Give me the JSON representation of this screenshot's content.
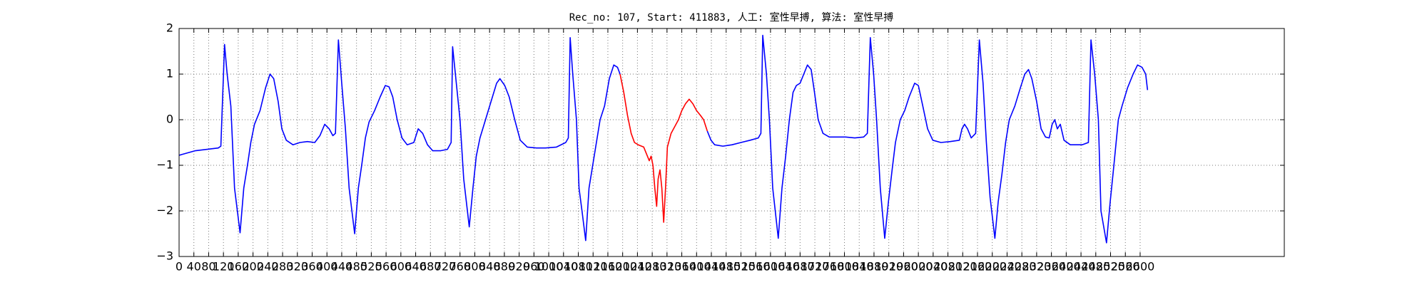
{
  "chart_data": {
    "type": "line",
    "title": "Rec_no: 107, Start: 411883, 人工: 室性早搏, 算法: 室性早搏",
    "xlim": [
      0,
      2990
    ],
    "xticks": [
      0,
      40,
      80,
      120,
      160,
      200,
      240,
      280,
      320,
      360,
      400,
      440,
      480,
      520,
      560,
      600,
      640,
      680,
      720,
      760,
      800,
      840,
      880,
      920,
      960,
      1000,
      1040,
      1080,
      1120,
      1160,
      1200,
      1240,
      1280,
      1320,
      1360,
      1400,
      1440,
      1480,
      1520,
      1560,
      1600,
      1640,
      1680,
      1720,
      1760,
      1800,
      1840,
      1880,
      1920,
      1960,
      2000,
      2040,
      2080,
      2120,
      2160,
      2200,
      2240,
      2280,
      2320,
      2360,
      2400,
      2440,
      2480,
      2520,
      2560,
      2600
    ],
    "ylim": [
      -3,
      2
    ],
    "yticks": [
      {
        "value": -3,
        "label": "−3"
      },
      {
        "value": -2,
        "label": "−2"
      },
      {
        "value": -1,
        "label": "−1"
      },
      0,
      1,
      2
    ],
    "grid": true,
    "series": [
      {
        "color": "#0000ff",
        "x": [
          0,
          44,
          106,
          113,
          123,
          130,
          140,
          150,
          165,
          175,
          185,
          194,
          204,
          219,
          234,
          246,
          256,
          268,
          278,
          290,
          308,
          327,
          347,
          367,
          381,
          394,
          406,
          416,
          423,
          431,
          440,
          450,
          460,
          475,
          485,
          494,
          504,
          514,
          529,
          544,
          558,
          568,
          578,
          590,
          603,
          617,
          635,
          647,
          659,
          672,
          686,
          708,
          726,
          736,
          740,
          750,
          760,
          770,
          785,
          795,
          804,
          814,
          829,
          844,
          859,
          868,
          881,
          893,
          908,
          923,
          942,
          967,
          991,
          1021,
          1046,
          1053,
          1058,
          1065,
          1075,
          1082,
          1090,
          1100,
          1109,
          1119,
          1129,
          1139,
          1151,
          1164,
          1176,
          1186,
          1193
        ],
        "values": [
          -0.78,
          -0.68,
          -0.62,
          -0.58,
          1.65,
          1.0,
          0.3,
          -1.5,
          -2.48,
          -1.5,
          -1.0,
          -0.5,
          -0.1,
          0.2,
          0.7,
          1.0,
          0.9,
          0.4,
          -0.2,
          -0.45,
          -0.55,
          -0.5,
          -0.48,
          -0.5,
          -0.35,
          -0.1,
          -0.2,
          -0.35,
          -0.3,
          1.75,
          0.8,
          -0.2,
          -1.5,
          -2.5,
          -1.5,
          -1.0,
          -0.4,
          -0.05,
          0.2,
          0.5,
          0.75,
          0.72,
          0.5,
          0.0,
          -0.4,
          -0.55,
          -0.5,
          -0.2,
          -0.3,
          -0.55,
          -0.68,
          -0.68,
          -0.65,
          -0.5,
          1.6,
          0.8,
          0.0,
          -1.3,
          -2.35,
          -1.5,
          -0.8,
          -0.4,
          0.0,
          0.4,
          0.8,
          0.9,
          0.75,
          0.5,
          0.0,
          -0.45,
          -0.6,
          -0.62,
          -0.62,
          -0.6,
          -0.5,
          -0.4,
          1.8,
          1.0,
          0.0,
          -1.5,
          -2.0,
          -2.65,
          -1.5,
          -1.0,
          -0.5,
          0.0,
          0.3,
          0.9,
          1.2,
          1.15,
          1.0
        ]
      },
      {
        "color": "#ff0000",
        "x": [
          1193,
          1203,
          1213,
          1223,
          1232,
          1242,
          1257,
          1267,
          1272,
          1277,
          1282,
          1287,
          1292,
          1296,
          1301,
          1306,
          1311,
          1316,
          1321,
          1331,
          1341,
          1351,
          1360,
          1370,
          1380,
          1390,
          1400,
          1410,
          1419,
          1429
        ],
        "values": [
          1.0,
          0.6,
          0.1,
          -0.3,
          -0.5,
          -0.55,
          -0.6,
          -0.8,
          -0.9,
          -0.8,
          -1.0,
          -1.5,
          -1.9,
          -1.3,
          -1.1,
          -1.5,
          -2.25,
          -1.5,
          -0.6,
          -0.3,
          -0.15,
          0.0,
          0.2,
          0.35,
          0.45,
          0.35,
          0.2,
          0.1,
          0.0,
          -0.25
        ]
      },
      {
        "color": "#0000ff",
        "x": [
          1429,
          1439,
          1449,
          1471,
          1496,
          1520,
          1545,
          1567,
          1574,
          1579,
          1589,
          1597,
          1606,
          1621,
          1631,
          1641,
          1651,
          1661,
          1670,
          1680,
          1690,
          1700,
          1710,
          1719,
          1729,
          1742,
          1759,
          1779,
          1803,
          1828,
          1852,
          1862,
          1870,
          1879,
          1887,
          1897,
          1909,
          1919,
          1929,
          1938,
          1951,
          1963,
          1975,
          1990,
          2000,
          2012,
          2025,
          2039,
          2061,
          2086,
          2111,
          2118,
          2125,
          2133,
          2143,
          2155,
          2165,
          2175,
          2184,
          2194,
          2207,
          2216,
          2226,
          2236,
          2246,
          2261,
          2276,
          2288,
          2298,
          2307,
          2320,
          2332,
          2344,
          2354,
          2362,
          2369,
          2376,
          2384,
          2394,
          2411,
          2443,
          2460,
          2467,
          2477,
          2487,
          2494,
          2509,
          2519,
          2529,
          2541,
          2551,
          2566,
          2581,
          2593,
          2605,
          2615,
          2620
        ],
        "values": [
          -0.25,
          -0.45,
          -0.55,
          -0.58,
          -0.55,
          -0.5,
          -0.45,
          -0.4,
          -0.3,
          1.85,
          1.0,
          0.0,
          -1.5,
          -2.6,
          -1.5,
          -0.8,
          0.0,
          0.6,
          0.75,
          0.8,
          1.0,
          1.2,
          1.1,
          0.6,
          0.0,
          -0.3,
          -0.38,
          -0.38,
          -0.38,
          -0.4,
          -0.38,
          -0.3,
          1.8,
          1.0,
          0.0,
          -1.5,
          -2.6,
          -1.8,
          -1.1,
          -0.5,
          0.0,
          0.2,
          0.5,
          0.8,
          0.75,
          0.3,
          -0.2,
          -0.45,
          -0.5,
          -0.48,
          -0.45,
          -0.2,
          -0.1,
          -0.2,
          -0.4,
          -0.3,
          1.75,
          0.8,
          -0.5,
          -1.7,
          -2.6,
          -1.8,
          -1.2,
          -0.5,
          0.0,
          0.3,
          0.7,
          1.0,
          1.1,
          0.9,
          0.4,
          -0.2,
          -0.38,
          -0.4,
          -0.1,
          0.0,
          -0.2,
          -0.1,
          -0.45,
          -0.55,
          -0.55,
          -0.5,
          1.75,
          1.0,
          0.0,
          -2.0,
          -2.7,
          -1.8,
          -1.0,
          0.0,
          0.3,
          0.7,
          1.0,
          1.2,
          1.15,
          1.0,
          0.65
        ]
      }
    ]
  }
}
